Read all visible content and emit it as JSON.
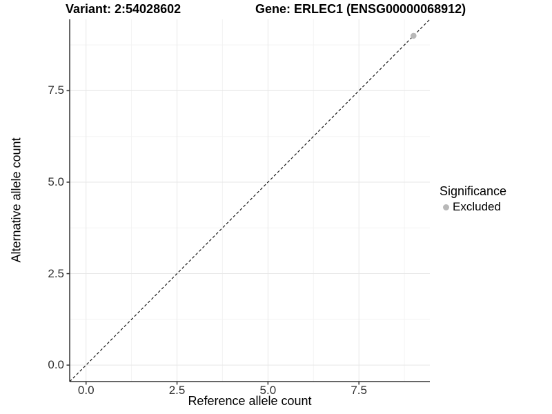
{
  "chart_data": {
    "type": "scatter",
    "titles": {
      "variant": "Variant: 2:54028602",
      "gene": "Gene: ERLEC1 (ENSG00000068912)"
    },
    "xlabel": "Reference allele count",
    "ylabel": "Alternative allele count",
    "xlim": [
      -0.45,
      9.45
    ],
    "ylim": [
      -0.45,
      9.45
    ],
    "x_major_ticks": [
      0,
      2.5,
      5,
      7.5
    ],
    "x_tick_labels": [
      "0.0",
      "2.5",
      "5.0",
      "7.5"
    ],
    "y_major_ticks": [
      0,
      2.5,
      5,
      7.5
    ],
    "y_tick_labels": [
      "0.0",
      "2.5",
      "5.0",
      "7.5"
    ],
    "x_minor_ticks": [
      1.25,
      3.75,
      6.25,
      8.75
    ],
    "y_minor_ticks": [
      1.25,
      3.75,
      6.25,
      8.75
    ],
    "grid": "major-and-minor",
    "reference_line": {
      "type": "identity",
      "slope": 1,
      "intercept": 0,
      "style": "dashed"
    },
    "series": [
      {
        "name": "Excluded",
        "color": "#b8b8b8",
        "points": [
          {
            "x": 9,
            "y": 9
          }
        ]
      }
    ],
    "legend": {
      "title": "Significance",
      "position": "right",
      "items": [
        {
          "label": "Excluded",
          "color": "#b8b8b8"
        }
      ]
    },
    "colors": {
      "background": "#ffffff",
      "grid_major": "#e7e7e7",
      "grid_minor": "#f3f3f3",
      "axis_line": "#333333",
      "tick_mark": "#333333",
      "tick_text": "#303030",
      "reference_line": "#1a1a1a",
      "point": "#b8b8b8"
    }
  }
}
